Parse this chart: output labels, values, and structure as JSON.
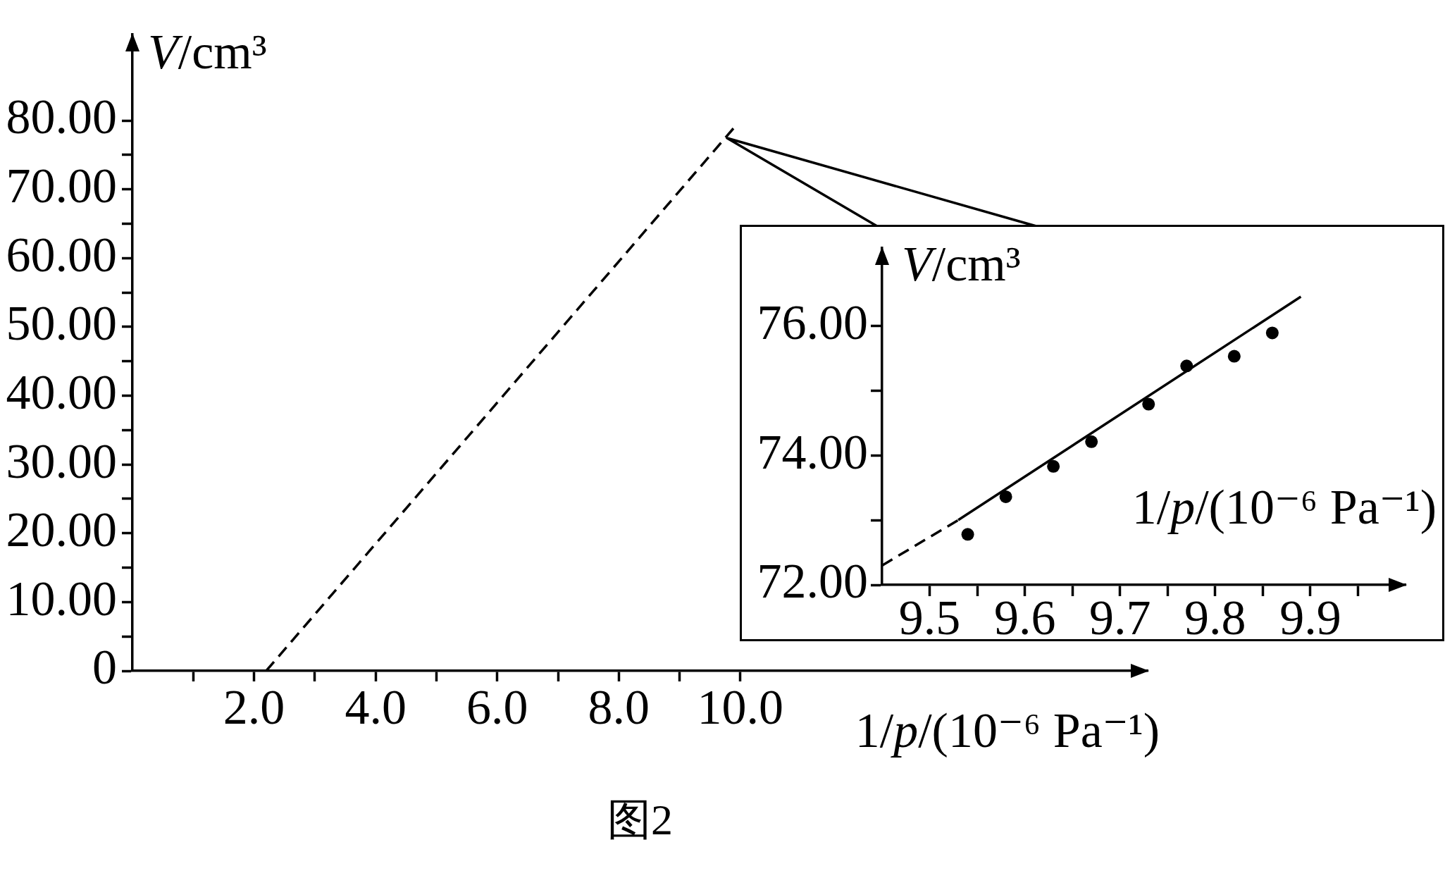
{
  "chart_data": [
    {
      "type": "line",
      "xlabel": "1/p/(10⁻⁶ Pa⁻¹)",
      "ylabel": "V/cm³",
      "xlim": [
        0,
        16.7
      ],
      "ylim": [
        0,
        92.5
      ],
      "xticks": [
        {
          "value": 1,
          "label": null
        },
        {
          "value": 2,
          "label": "2.0"
        },
        {
          "value": 3,
          "label": null
        },
        {
          "value": 4,
          "label": "4.0"
        },
        {
          "value": 5,
          "label": null
        },
        {
          "value": 6,
          "label": "6.0"
        },
        {
          "value": 7,
          "label": null
        },
        {
          "value": 8,
          "label": "8.0"
        },
        {
          "value": 9,
          "label": null
        },
        {
          "value": 10,
          "label": "10.0"
        }
      ],
      "yticks": [
        0,
        {
          "value": 5,
          "label": null
        },
        {
          "value": 10,
          "label": "10.00"
        },
        {
          "value": 15,
          "label": null
        },
        {
          "value": 20,
          "label": "20.00"
        },
        {
          "value": 25,
          "label": null
        },
        {
          "value": 30,
          "label": "30.00"
        },
        {
          "value": 35,
          "label": null
        },
        {
          "value": 40,
          "label": "40.00"
        },
        {
          "value": 45,
          "label": null
        },
        {
          "value": 50,
          "label": "50.00"
        },
        {
          "value": 55,
          "label": null
        },
        {
          "value": 60,
          "label": "60.00"
        },
        {
          "value": 65,
          "label": null
        },
        {
          "value": 70,
          "label": "70.00"
        },
        {
          "value": 75,
          "label": null
        },
        {
          "value": 80,
          "label": "80.00"
        }
      ],
      "series": [
        {
          "color": "#000000",
          "line_style": "dashed",
          "x": [
            2.2,
            9.9
          ],
          "values": [
            0,
            79
          ]
        }
      ],
      "annotations": [
        "图2"
      ]
    },
    {
      "type": "scatter",
      "xlabel": "1/p/(10⁻⁶ Pa⁻¹)",
      "ylabel": "V/cm³",
      "xlim": [
        9.45,
        10.0
      ],
      "ylim": [
        72,
        77.2
      ],
      "xticks": [
        9.5,
        {
          "value": 9.55,
          "label": null
        },
        9.6,
        {
          "value": 9.65,
          "label": null
        },
        9.7,
        {
          "value": 9.75,
          "label": null
        },
        9.8,
        {
          "value": 9.85,
          "label": null
        },
        9.9,
        {
          "value": 9.95,
          "label": null
        }
      ],
      "yticks": [
        {
          "value": 72,
          "label": "72.00"
        },
        {
          "value": 73,
          "label": null
        },
        {
          "value": 74,
          "label": "74.00"
        },
        {
          "value": 75,
          "label": null
        },
        {
          "value": 76,
          "label": "76.00"
        }
      ],
      "series": [
        {
          "color": "#000000",
          "marker": "circle",
          "x": [
            9.54,
            9.58,
            9.63,
            9.67,
            9.73,
            9.77,
            9.82,
            9.86
          ],
          "values": [
            72.78,
            73.36,
            73.83,
            74.21,
            74.79,
            75.38,
            75.53,
            75.89
          ]
        },
        {
          "type": "line",
          "color": "#000000",
          "line_style": "solid",
          "x": [
            9.53,
            9.89
          ],
          "values": [
            73.0,
            76.45
          ]
        },
        {
          "type": "line",
          "color": "#000000",
          "line_style": "dashed",
          "x": [
            9.45,
            9.53
          ],
          "values": [
            72.3,
            73.0
          ]
        }
      ]
    }
  ]
}
